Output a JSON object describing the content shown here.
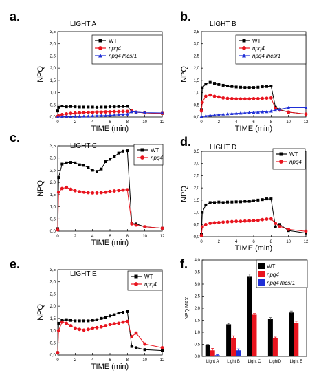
{
  "chart_data": [
    {
      "panel": "a.",
      "type": "line",
      "title": "LIGHT A",
      "xlabel": "TIME (min)",
      "ylabel": "NPQ",
      "xlim": [
        0,
        12
      ],
      "ylim": [
        0,
        3.5
      ],
      "xticks": [
        "0",
        "2",
        "4",
        "6",
        "8",
        "10",
        "12"
      ],
      "yticks": [
        "0,0",
        "0,5",
        "1,0",
        "1,5",
        "2,0",
        "2,5",
        "3,0",
        "3,5"
      ],
      "legend": "top-right",
      "series": [
        {
          "name": "WT",
          "color": "#000000",
          "marker": "square",
          "x": [
            0,
            0.1,
            0.5,
            1,
            1.5,
            2,
            2.5,
            3,
            3.5,
            4,
            4.5,
            5,
            5.5,
            6,
            6.5,
            7,
            7.5,
            8,
            8.5,
            9,
            10,
            12
          ],
          "y": [
            0.25,
            0.4,
            0.45,
            0.42,
            0.43,
            0.42,
            0.41,
            0.41,
            0.41,
            0.41,
            0.4,
            0.41,
            0.41,
            0.42,
            0.42,
            0.43,
            0.43,
            0.44,
            0.22,
            0.2,
            0.17,
            0.15
          ]
        },
        {
          "name": "npq4",
          "color": "#e8141e",
          "marker": "circle",
          "x": [
            0,
            0.1,
            0.5,
            1,
            1.5,
            2,
            2.5,
            3,
            3.5,
            4,
            4.5,
            5,
            5.5,
            6,
            6.5,
            7,
            7.5,
            8,
            8.5,
            9,
            10,
            12
          ],
          "y": [
            0.03,
            0.05,
            0.1,
            0.13,
            0.15,
            0.16,
            0.17,
            0.18,
            0.19,
            0.19,
            0.2,
            0.2,
            0.21,
            0.21,
            0.22,
            0.22,
            0.23,
            0.23,
            0.25,
            0.2,
            0.17,
            0.15
          ]
        },
        {
          "name": "npq4 lhcsr1",
          "color": "#1f2fd6",
          "marker": "triangle",
          "x": [
            0,
            0.5,
            1,
            1.5,
            2,
            2.5,
            3,
            3.5,
            4,
            4.5,
            5,
            5.5,
            6,
            6.5,
            7,
            7.5,
            8,
            8.5,
            9,
            10,
            12
          ],
          "y": [
            0.0,
            0.01,
            0.02,
            0.02,
            0.03,
            0.03,
            0.04,
            0.04,
            0.05,
            0.05,
            0.06,
            0.06,
            0.07,
            0.08,
            0.09,
            0.1,
            0.12,
            0.22,
            0.2,
            0.18,
            0.17
          ]
        }
      ]
    },
    {
      "panel": "b.",
      "type": "line",
      "title": "LIGHT B",
      "xlabel": "TIME (min)",
      "ylabel": "NPQ",
      "xlim": [
        0,
        12
      ],
      "ylim": [
        0,
        3.5
      ],
      "xticks": [
        "0",
        "2",
        "4",
        "6",
        "8",
        "10",
        "12"
      ],
      "yticks": [
        "0,0",
        "0,5",
        "1,0",
        "1,5",
        "2,0",
        "2,5",
        "3,0",
        "3,5"
      ],
      "legend": "top-right",
      "series": [
        {
          "name": "WT",
          "color": "#000000",
          "marker": "square",
          "x": [
            0,
            0.1,
            0.5,
            1,
            1.5,
            2,
            2.5,
            3,
            3.5,
            4,
            4.5,
            5,
            5.5,
            6,
            6.5,
            7,
            7.5,
            8,
            8.5,
            9,
            10,
            12
          ],
          "y": [
            0.3,
            1.2,
            1.35,
            1.42,
            1.38,
            1.33,
            1.3,
            1.27,
            1.25,
            1.23,
            1.22,
            1.21,
            1.21,
            1.21,
            1.22,
            1.24,
            1.25,
            1.27,
            0.4,
            0.3,
            0.2,
            0.12
          ]
        },
        {
          "name": "npq4",
          "color": "#e8141e",
          "marker": "circle",
          "x": [
            0,
            0.1,
            0.5,
            1,
            1.5,
            2,
            2.5,
            3,
            3.5,
            4,
            4.5,
            5,
            5.5,
            6,
            6.5,
            7,
            7.5,
            8,
            8.5,
            9,
            10,
            12
          ],
          "y": [
            0.25,
            0.6,
            0.85,
            0.9,
            0.85,
            0.82,
            0.78,
            0.76,
            0.75,
            0.74,
            0.74,
            0.74,
            0.74,
            0.75,
            0.75,
            0.76,
            0.77,
            0.78,
            0.35,
            0.28,
            0.2,
            0.12
          ]
        },
        {
          "name": "npq4 lhcsr1",
          "color": "#1f2fd6",
          "marker": "triangle",
          "x": [
            0,
            0.5,
            1,
            1.5,
            2,
            2.5,
            3,
            3.5,
            4,
            4.5,
            5,
            5.5,
            6,
            6.5,
            7,
            7.5,
            8,
            8.5,
            9,
            10,
            12
          ],
          "y": [
            0.02,
            0.05,
            0.07,
            0.08,
            0.1,
            0.12,
            0.13,
            0.14,
            0.15,
            0.16,
            0.17,
            0.18,
            0.19,
            0.2,
            0.21,
            0.22,
            0.24,
            0.28,
            0.32,
            0.38,
            0.38
          ]
        }
      ]
    },
    {
      "panel": "c.",
      "type": "line",
      "title": "LIGHT C",
      "xlabel": "TIME (min)",
      "ylabel": "NPQ",
      "xlim": [
        0,
        12
      ],
      "ylim": [
        0,
        3.5
      ],
      "xticks": [
        "0",
        "2",
        "4",
        "6",
        "8",
        "10",
        "12"
      ],
      "yticks": [
        "0,0",
        "0,5",
        "1,0",
        "1,5",
        "2,0",
        "2,5",
        "3,0",
        "3,5"
      ],
      "legend": "top-right",
      "series": [
        {
          "name": "WT",
          "color": "#000000",
          "marker": "square",
          "x": [
            0,
            0.1,
            0.5,
            1,
            1.5,
            2,
            2.5,
            3,
            3.5,
            4,
            4.5,
            5,
            5.5,
            6,
            6.5,
            7,
            7.5,
            8,
            8.5,
            9,
            10,
            12
          ],
          "y": [
            0.1,
            2.2,
            2.75,
            2.8,
            2.82,
            2.8,
            2.72,
            2.7,
            2.6,
            2.5,
            2.45,
            2.55,
            2.85,
            2.95,
            3.05,
            3.2,
            3.28,
            3.3,
            0.32,
            0.3,
            0.18,
            0.12
          ]
        },
        {
          "name": "npq4",
          "color": "#e8141e",
          "marker": "circle",
          "x": [
            0,
            0.1,
            0.5,
            1,
            1.5,
            2,
            2.5,
            3,
            3.5,
            4,
            4.5,
            5,
            5.5,
            6,
            6.5,
            7,
            7.5,
            8,
            8.5,
            9,
            10,
            12
          ],
          "y": [
            0.05,
            1.6,
            1.75,
            1.8,
            1.72,
            1.66,
            1.62,
            1.6,
            1.58,
            1.57,
            1.57,
            1.58,
            1.6,
            1.63,
            1.65,
            1.67,
            1.69,
            1.7,
            0.3,
            0.25,
            0.18,
            0.12
          ]
        }
      ]
    },
    {
      "panel": "d.",
      "type": "line",
      "title": "LIGHT D",
      "xlabel": "TIME (min)",
      "ylabel": "NPQ",
      "xlim": [
        0,
        12
      ],
      "ylim": [
        0,
        3.5
      ],
      "xticks": [
        "0",
        "2",
        "4",
        "6",
        "8",
        "10",
        "12"
      ],
      "yticks": [
        "0,0",
        "0,5",
        "1,0",
        "1,5",
        "2,0",
        "2,5",
        "3,0",
        "3,5"
      ],
      "legend": "top-right",
      "series": [
        {
          "name": "WT",
          "color": "#000000",
          "marker": "square",
          "x": [
            0,
            0.1,
            0.5,
            1,
            1.5,
            2,
            2.5,
            3,
            3.5,
            4,
            4.5,
            5,
            5.5,
            6,
            6.5,
            7,
            7.5,
            8,
            8.5,
            9,
            10,
            12
          ],
          "y": [
            0.1,
            1.0,
            1.3,
            1.4,
            1.4,
            1.42,
            1.4,
            1.42,
            1.42,
            1.43,
            1.43,
            1.45,
            1.45,
            1.48,
            1.5,
            1.52,
            1.55,
            1.55,
            0.4,
            0.5,
            0.25,
            0.15
          ]
        },
        {
          "name": "npq4",
          "color": "#e8141e",
          "marker": "circle",
          "x": [
            0,
            0.1,
            0.5,
            1,
            1.5,
            2,
            2.5,
            3,
            3.5,
            4,
            4.5,
            5,
            5.5,
            6,
            6.5,
            7,
            7.5,
            8,
            8.5,
            9,
            10,
            12
          ],
          "y": [
            0.05,
            0.4,
            0.5,
            0.55,
            0.57,
            0.58,
            0.6,
            0.61,
            0.62,
            0.63,
            0.63,
            0.64,
            0.65,
            0.66,
            0.67,
            0.7,
            0.72,
            0.73,
            0.55,
            0.42,
            0.3,
            0.22
          ]
        }
      ]
    },
    {
      "panel": "e.",
      "type": "line",
      "title": "LIGHT E",
      "xlabel": "TIME (min)",
      "ylabel": "NPQ",
      "xlim": [
        0,
        12
      ],
      "ylim": [
        0,
        3.5
      ],
      "xticks": [
        "0",
        "2",
        "4",
        "6",
        "8",
        "10",
        "12"
      ],
      "yticks": [
        "0,0",
        "0,5",
        "1,0",
        "1,5",
        "2,0",
        "2,5",
        "3,0",
        "3,5"
      ],
      "legend": "top-right",
      "series": [
        {
          "name": "WT",
          "color": "#000000",
          "marker": "square",
          "x": [
            0,
            0.1,
            0.5,
            1,
            1.5,
            2,
            2.5,
            3,
            3.5,
            4,
            4.5,
            5,
            5.5,
            6,
            6.5,
            7,
            7.5,
            8,
            8.5,
            9,
            10,
            12
          ],
          "y": [
            0.1,
            1.3,
            1.42,
            1.45,
            1.42,
            1.4,
            1.4,
            1.4,
            1.4,
            1.42,
            1.45,
            1.5,
            1.55,
            1.6,
            1.65,
            1.72,
            1.75,
            1.78,
            0.35,
            0.3,
            0.22,
            0.18
          ]
        },
        {
          "name": "npq4",
          "color": "#e8141e",
          "marker": "circle",
          "x": [
            0,
            0.1,
            0.5,
            1,
            1.5,
            2,
            2.5,
            3,
            3.5,
            4,
            4.5,
            5,
            5.5,
            6,
            6.5,
            7,
            7.5,
            8,
            8.5,
            9,
            10,
            12
          ],
          "y": [
            0.1,
            1.0,
            1.35,
            1.3,
            1.2,
            1.1,
            1.05,
            1.02,
            1.05,
            1.1,
            1.12,
            1.15,
            1.2,
            1.25,
            1.28,
            1.3,
            1.35,
            1.38,
            0.75,
            0.9,
            0.45,
            0.3
          ]
        }
      ]
    },
    {
      "panel": "f.",
      "type": "bar",
      "title": "",
      "xlabel": "",
      "ylabel": "NPQ MAX",
      "ylim": [
        0,
        4
      ],
      "yticks": [
        "0,0",
        "0,5",
        "1,0",
        "1,5",
        "2,0",
        "2,5",
        "3,0",
        "3,5",
        "4,0"
      ],
      "legend": "top-right",
      "categories": [
        "Light A",
        "Light B",
        "Light C",
        "LightD",
        "Light E"
      ],
      "series": [
        {
          "name": "WT",
          "color": "#000000",
          "values": [
            0.47,
            1.33,
            3.33,
            1.57,
            1.82
          ],
          "errors": [
            0.03,
            0.04,
            0.08,
            0.04,
            0.06
          ]
        },
        {
          "name": "npq4",
          "color": "#e8141e",
          "values": [
            0.25,
            0.77,
            1.73,
            0.75,
            1.38
          ],
          "errors": [
            0.08,
            0.08,
            0.05,
            0.05,
            0.08
          ]
        },
        {
          "name": "npq4 lhcsr1",
          "color": "#1f2fd6",
          "values": [
            0.05,
            0.25,
            null,
            null,
            null
          ],
          "errors": [
            0.02,
            0.06,
            null,
            null,
            null
          ]
        }
      ]
    }
  ]
}
